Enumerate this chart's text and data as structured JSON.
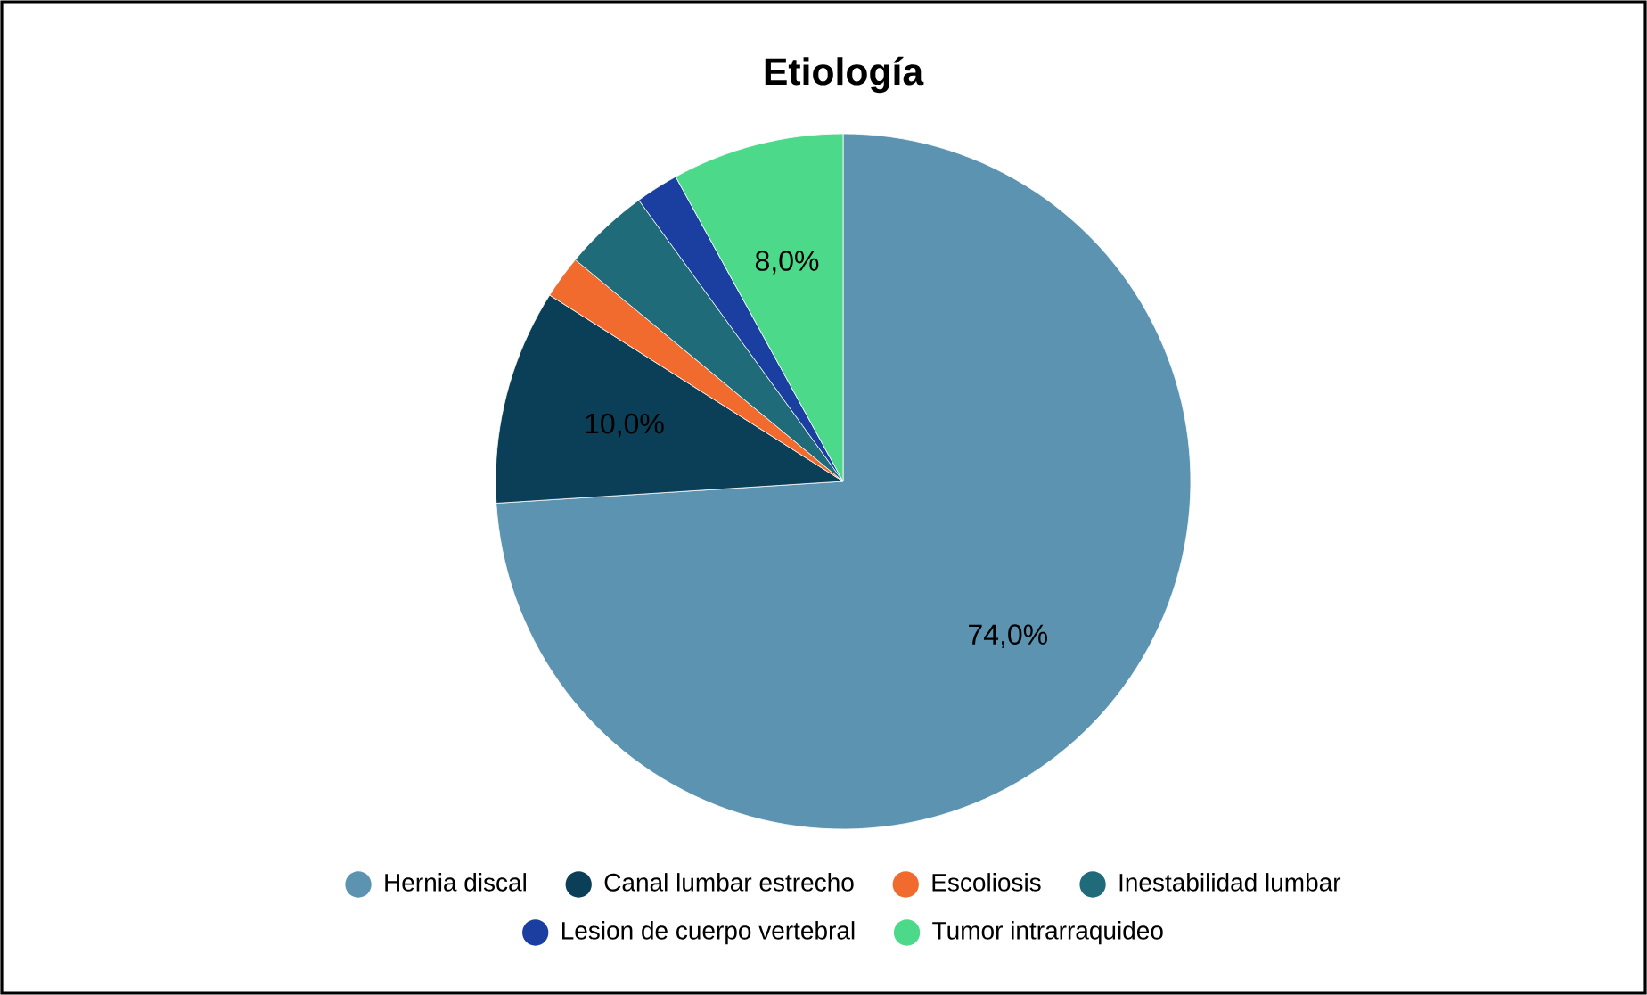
{
  "chart_data": {
    "type": "pie",
    "title": "Etiología",
    "categories": [
      "Hernia discal",
      "Canal lumbar estrecho",
      "Escoliosis",
      "Inestabilidad lumbar",
      "Lesion de cuerpo vertebral",
      "Tumor intrarraquideo"
    ],
    "values": [
      74,
      10,
      2,
      4,
      2,
      8
    ],
    "colors": [
      "#5b93b0",
      "#0b3e57",
      "#f26b2e",
      "#1f6b7a",
      "#1a3fa0",
      "#4cd98a"
    ],
    "value_labels": [
      "74,0%",
      "10,0%",
      null,
      null,
      null,
      "8,0%"
    ],
    "legend": "bottom"
  }
}
